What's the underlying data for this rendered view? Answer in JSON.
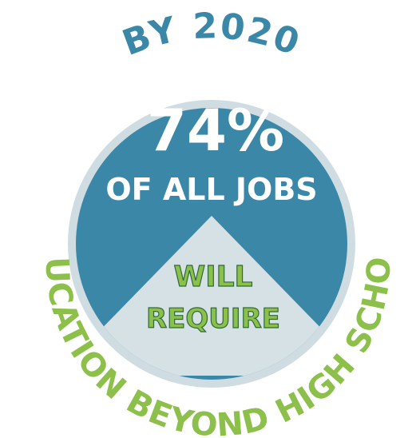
{
  "headline": {
    "top_text": "BY 2020",
    "percent": "74%",
    "subject": "OF ALL JOBS",
    "verb_line1": "WILL",
    "verb_line2": "REQUIRE",
    "bottom_text": "EDUCATION BEYOND HIGH SCHOOL"
  },
  "colors": {
    "circle_blue": "#3a87a8",
    "mountain_gray": "#d6e1e5",
    "ring_light": "#cfdde2",
    "text_white": "#ffffff",
    "text_green": "#8cc04a",
    "text_green_shadow": "#2c6b3a",
    "top_text_blue": "#3a87a8"
  },
  "share": {
    "value_percent": 74
  }
}
